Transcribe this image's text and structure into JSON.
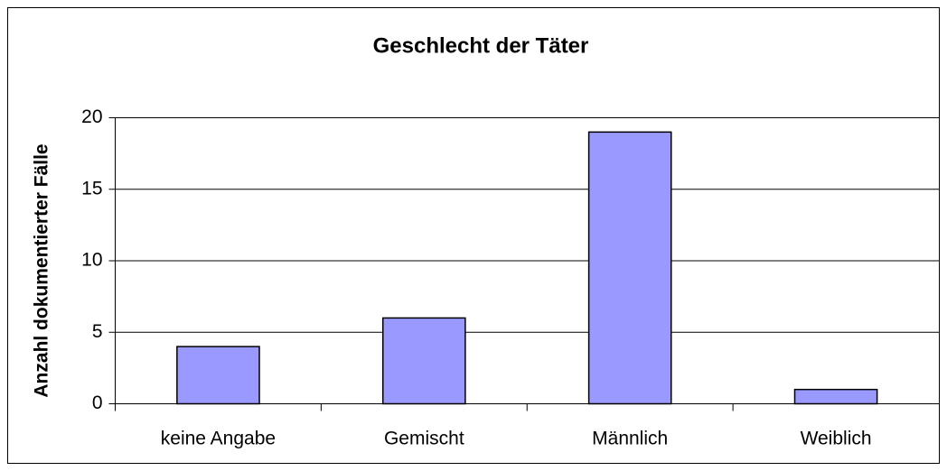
{
  "chart_data": {
    "type": "bar",
    "title": "Geschlecht der Täter",
    "y_label": "Anzahl dokumentierter Fälle",
    "categories": [
      "keine Angabe",
      "Gemischt",
      "Männlich",
      "Weiblich"
    ],
    "values": [
      4,
      6,
      19,
      1
    ],
    "color": "#9999ff",
    "ylim": [
      0,
      20
    ],
    "yticks": [
      0,
      5,
      10,
      15,
      20
    ],
    "grid": true
  }
}
